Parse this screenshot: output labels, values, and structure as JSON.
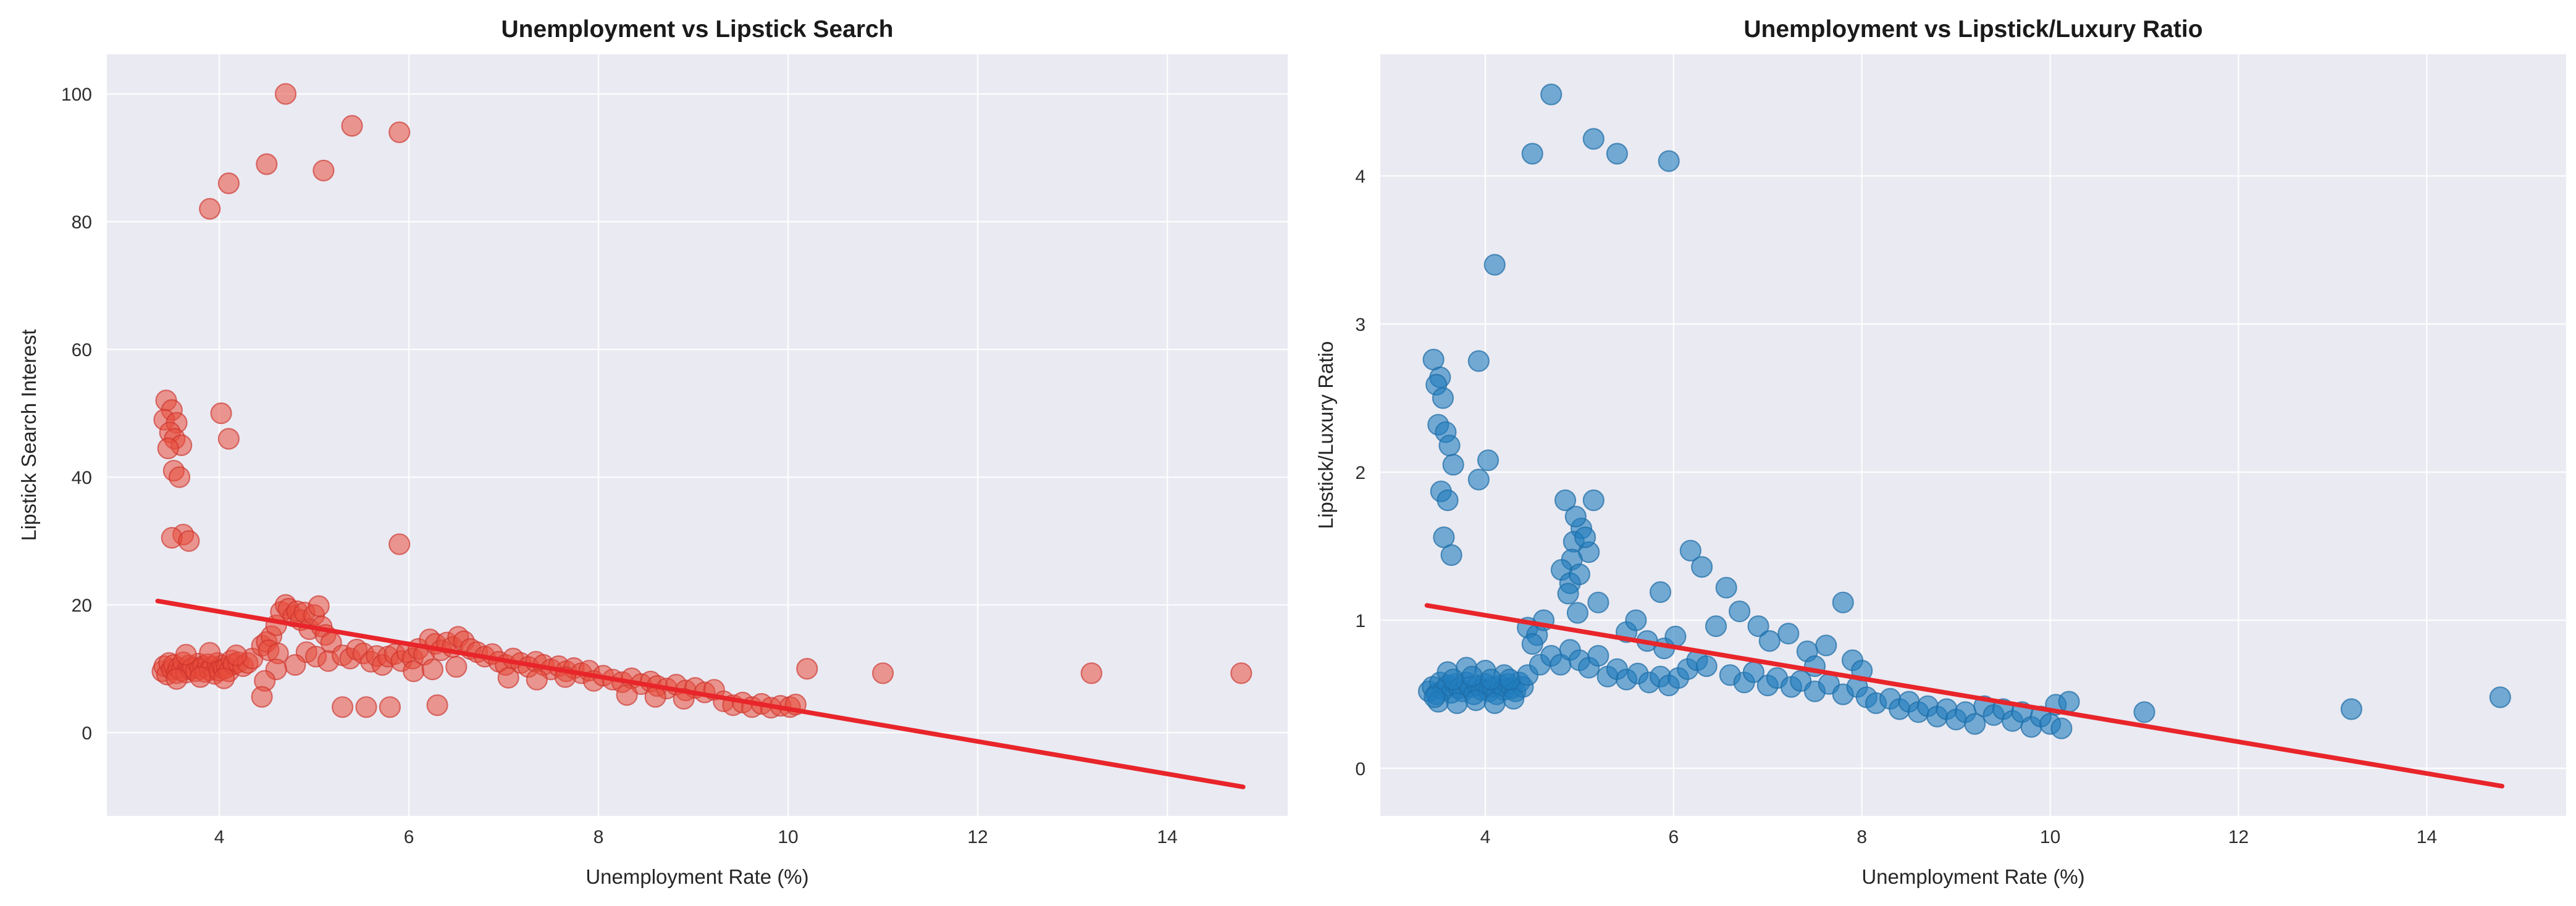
{
  "figure": {
    "background": "#ffffff",
    "panel_background": "#eaeaf2",
    "grid_color": "#ffffff"
  },
  "chart_data": [
    {
      "type": "scatter",
      "title": "Unemployment vs Lipstick Search",
      "xlabel": "Unemployment Rate (%)",
      "ylabel": "Lipstick Search Interest",
      "xlim": [
        2.814,
        15.27
      ],
      "ylim": [
        -13.04,
        106.2
      ],
      "xticks": [
        4,
        6,
        8,
        10,
        12,
        14
      ],
      "yticks": [
        0,
        20,
        40,
        60,
        80,
        100
      ],
      "legend": "none",
      "grid": true,
      "point_color": "rgba(231,76,60,0.55)",
      "point_edge": "rgba(205,50,45,0.65)",
      "trend_color": "#e8252a",
      "trend": {
        "x1": 3.35,
        "y1": 20.6,
        "x2": 14.8,
        "y2": -8.5
      },
      "points": [
        [
          3.4,
          9.6
        ],
        [
          3.42,
          10.4
        ],
        [
          3.45,
          9.1
        ],
        [
          3.47,
          10.9
        ],
        [
          3.5,
          9.9
        ],
        [
          3.52,
          10.6
        ],
        [
          3.55,
          9.3
        ],
        [
          3.57,
          10.1
        ],
        [
          3.6,
          9.7
        ],
        [
          3.62,
          11.0
        ],
        [
          3.65,
          9.4
        ],
        [
          3.68,
          10.5
        ],
        [
          3.7,
          9.9
        ],
        [
          3.72,
          10.2
        ],
        [
          3.75,
          9.6
        ],
        [
          3.78,
          10.8
        ],
        [
          3.8,
          10.0
        ],
        [
          3.83,
          10.4
        ],
        [
          3.85,
          9.5
        ],
        [
          3.88,
          10.7
        ],
        [
          3.9,
          9.8
        ],
        [
          3.93,
          10.3
        ],
        [
          3.95,
          9.2
        ],
        [
          3.98,
          10.9
        ],
        [
          4.0,
          9.7
        ],
        [
          4.03,
          10.5
        ],
        [
          4.05,
          10.0
        ],
        [
          4.08,
          10.2
        ],
        [
          4.1,
          9.6
        ],
        [
          4.13,
          11.3
        ],
        [
          4.15,
          10.7
        ],
        [
          4.2,
          11.0
        ],
        [
          4.25,
          10.4
        ],
        [
          4.3,
          10.9
        ],
        [
          4.35,
          11.6
        ],
        [
          3.55,
          8.4
        ],
        [
          3.8,
          8.7
        ],
        [
          4.05,
          8.5
        ],
        [
          3.65,
          12.2
        ],
        [
          3.9,
          12.5
        ],
        [
          4.18,
          12.1
        ],
        [
          3.44,
          52
        ],
        [
          3.5,
          50.5
        ],
        [
          3.42,
          49
        ],
        [
          3.55,
          48.5
        ],
        [
          3.48,
          47
        ],
        [
          3.53,
          46
        ],
        [
          3.6,
          45
        ],
        [
          3.46,
          44.5
        ],
        [
          3.52,
          41
        ],
        [
          3.58,
          40
        ],
        [
          3.62,
          31
        ],
        [
          3.5,
          30.5
        ],
        [
          3.68,
          30
        ],
        [
          4.02,
          50
        ],
        [
          4.1,
          46
        ],
        [
          3.9,
          82
        ],
        [
          4.1,
          86
        ],
        [
          4.5,
          89
        ],
        [
          4.7,
          100
        ],
        [
          5.1,
          88
        ],
        [
          5.4,
          95
        ],
        [
          5.9,
          94
        ],
        [
          5.9,
          29.5
        ],
        [
          4.45,
          13.6
        ],
        [
          4.5,
          14.2
        ],
        [
          4.55,
          15.1
        ],
        [
          4.6,
          16.8
        ],
        [
          4.65,
          18.9
        ],
        [
          4.7,
          20.0
        ],
        [
          4.73,
          19.4
        ],
        [
          4.78,
          18.2
        ],
        [
          4.82,
          19.0
        ],
        [
          4.86,
          17.6
        ],
        [
          4.9,
          18.8
        ],
        [
          4.95,
          16.2
        ],
        [
          5.0,
          18.4
        ],
        [
          5.05,
          19.8
        ],
        [
          5.08,
          16.6
        ],
        [
          5.12,
          15.3
        ],
        [
          5.18,
          14.1
        ],
        [
          4.52,
          12.9
        ],
        [
          4.62,
          12.4
        ],
        [
          4.92,
          12.6
        ],
        [
          5.02,
          11.9
        ],
        [
          5.15,
          11.2
        ],
        [
          4.8,
          10.6
        ],
        [
          4.6,
          9.9
        ],
        [
          4.48,
          8.1
        ],
        [
          4.45,
          5.6
        ],
        [
          5.3,
          4.0
        ],
        [
          5.55,
          4.0
        ],
        [
          5.8,
          4.0
        ],
        [
          6.3,
          4.3
        ],
        [
          5.3,
          12.1
        ],
        [
          5.38,
          11.6
        ],
        [
          5.45,
          13.0
        ],
        [
          5.52,
          12.4
        ],
        [
          5.6,
          11.1
        ],
        [
          5.66,
          12.0
        ],
        [
          5.72,
          10.6
        ],
        [
          5.78,
          11.9
        ],
        [
          5.85,
          12.3
        ],
        [
          5.92,
          11.2
        ],
        [
          5.98,
          12.6
        ],
        [
          6.04,
          11.6
        ],
        [
          6.1,
          13.1
        ],
        [
          6.16,
          12.2
        ],
        [
          6.22,
          14.6
        ],
        [
          6.28,
          13.9
        ],
        [
          6.34,
          12.9
        ],
        [
          6.4,
          14.1
        ],
        [
          6.46,
          13.4
        ],
        [
          6.52,
          15.0
        ],
        [
          6.58,
          14.3
        ],
        [
          6.05,
          9.6
        ],
        [
          6.25,
          9.9
        ],
        [
          6.5,
          10.3
        ],
        [
          6.65,
          13.1
        ],
        [
          6.72,
          12.6
        ],
        [
          6.8,
          11.9
        ],
        [
          6.88,
          12.3
        ],
        [
          6.95,
          11.1
        ],
        [
          7.02,
          10.6
        ],
        [
          7.1,
          11.6
        ],
        [
          7.18,
          10.9
        ],
        [
          7.26,
          10.3
        ],
        [
          7.34,
          11.1
        ],
        [
          7.42,
          10.6
        ],
        [
          7.5,
          9.9
        ],
        [
          7.58,
          10.4
        ],
        [
          7.66,
          9.6
        ],
        [
          7.74,
          10.1
        ],
        [
          7.82,
          9.3
        ],
        [
          7.9,
          9.7
        ],
        [
          7.05,
          8.6
        ],
        [
          7.35,
          8.3
        ],
        [
          7.65,
          8.7
        ],
        [
          7.95,
          8.1
        ],
        [
          8.05,
          8.9
        ],
        [
          8.15,
          8.3
        ],
        [
          8.25,
          7.9
        ],
        [
          8.35,
          8.5
        ],
        [
          8.45,
          7.6
        ],
        [
          8.55,
          8.0
        ],
        [
          8.62,
          7.3
        ],
        [
          8.72,
          6.9
        ],
        [
          8.82,
          7.5
        ],
        [
          8.92,
          6.6
        ],
        [
          9.02,
          7.0
        ],
        [
          9.12,
          6.3
        ],
        [
          9.22,
          6.7
        ],
        [
          8.3,
          5.9
        ],
        [
          8.6,
          5.6
        ],
        [
          8.9,
          5.3
        ],
        [
          9.32,
          4.9
        ],
        [
          9.42,
          4.3
        ],
        [
          9.52,
          4.7
        ],
        [
          9.62,
          4.0
        ],
        [
          9.72,
          4.5
        ],
        [
          9.82,
          3.9
        ],
        [
          9.92,
          4.2
        ],
        [
          10.02,
          4.0
        ],
        [
          10.08,
          4.4
        ],
        [
          10.2,
          10.0
        ],
        [
          11.0,
          9.3
        ],
        [
          13.2,
          9.3
        ],
        [
          14.78,
          9.3
        ]
      ]
    },
    {
      "type": "scatter",
      "title": "Unemployment vs Lipstick/Luxury Ratio",
      "xlabel": "Unemployment Rate (%)",
      "ylabel": "Lipstick/Luxury Ratio",
      "xlim": [
        2.885,
        15.48
      ],
      "ylim": [
        -0.321,
        4.821
      ],
      "xticks": [
        4,
        6,
        8,
        10,
        12,
        14
      ],
      "yticks": [
        0,
        1,
        2,
        3,
        4
      ],
      "legend": "none",
      "grid": true,
      "point_color": "rgba(33,125,190,0.6)",
      "point_edge": "rgba(28,108,165,0.7)",
      "trend_color": "#e8252a",
      "trend": {
        "x1": 3.38,
        "y1": 1.1,
        "x2": 14.8,
        "y2": -0.12
      },
      "points": [
        [
          4.7,
          4.55
        ],
        [
          5.15,
          4.25
        ],
        [
          4.5,
          4.15
        ],
        [
          5.4,
          4.15
        ],
        [
          5.95,
          4.1
        ],
        [
          4.1,
          3.4
        ],
        [
          3.45,
          2.76
        ],
        [
          3.93,
          2.75
        ],
        [
          3.52,
          2.64
        ],
        [
          3.48,
          2.59
        ],
        [
          3.55,
          2.5
        ],
        [
          3.5,
          2.32
        ],
        [
          3.58,
          2.27
        ],
        [
          3.62,
          2.18
        ],
        [
          3.66,
          2.05
        ],
        [
          4.03,
          2.08
        ],
        [
          3.93,
          1.95
        ],
        [
          3.53,
          1.87
        ],
        [
          3.6,
          1.81
        ],
        [
          3.56,
          1.56
        ],
        [
          3.64,
          1.44
        ],
        [
          4.85,
          1.81
        ],
        [
          5.15,
          1.81
        ],
        [
          5.02,
          1.62
        ],
        [
          4.94,
          1.53
        ],
        [
          4.92,
          1.41
        ],
        [
          4.81,
          1.34
        ],
        [
          4.9,
          1.25
        ],
        [
          5.0,
          1.31
        ],
        [
          5.1,
          1.46
        ],
        [
          4.96,
          1.7
        ],
        [
          5.06,
          1.56
        ],
        [
          4.88,
          1.18
        ],
        [
          5.2,
          1.12
        ],
        [
          4.98,
          1.05
        ],
        [
          5.86,
          1.19
        ],
        [
          6.18,
          1.47
        ],
        [
          6.56,
          1.22
        ],
        [
          6.3,
          1.36
        ],
        [
          5.5,
          0.92
        ],
        [
          5.6,
          1.0
        ],
        [
          5.72,
          0.86
        ],
        [
          5.9,
          0.81
        ],
        [
          6.02,
          0.89
        ],
        [
          6.45,
          0.96
        ],
        [
          6.7,
          1.06
        ],
        [
          6.9,
          0.96
        ],
        [
          7.8,
          1.12
        ],
        [
          7.02,
          0.86
        ],
        [
          7.22,
          0.91
        ],
        [
          7.42,
          0.79
        ],
        [
          7.62,
          0.83
        ],
        [
          7.5,
          0.69
        ],
        [
          7.9,
          0.73
        ],
        [
          8.0,
          0.66
        ],
        [
          3.4,
          0.52
        ],
        [
          3.44,
          0.55
        ],
        [
          3.48,
          0.5
        ],
        [
          3.52,
          0.58
        ],
        [
          3.56,
          0.53
        ],
        [
          3.6,
          0.56
        ],
        [
          3.64,
          0.51
        ],
        [
          3.68,
          0.57
        ],
        [
          3.72,
          0.54
        ],
        [
          3.76,
          0.52
        ],
        [
          3.8,
          0.58
        ],
        [
          3.84,
          0.55
        ],
        [
          3.88,
          0.5
        ],
        [
          3.92,
          0.56
        ],
        [
          3.96,
          0.53
        ],
        [
          4.0,
          0.57
        ],
        [
          4.04,
          0.52
        ],
        [
          4.08,
          0.55
        ],
        [
          4.12,
          0.5
        ],
        [
          4.16,
          0.56
        ],
        [
          4.2,
          0.53
        ],
        [
          4.24,
          0.57
        ],
        [
          4.28,
          0.54
        ],
        [
          4.32,
          0.52
        ],
        [
          4.36,
          0.58
        ],
        [
          4.4,
          0.55
        ],
        [
          3.5,
          0.45
        ],
        [
          3.7,
          0.44
        ],
        [
          3.9,
          0.46
        ],
        [
          4.1,
          0.44
        ],
        [
          4.3,
          0.47
        ],
        [
          3.6,
          0.65
        ],
        [
          3.8,
          0.68
        ],
        [
          4.0,
          0.66
        ],
        [
          4.2,
          0.63
        ],
        [
          3.46,
          0.48
        ],
        [
          3.66,
          0.6
        ],
        [
          3.86,
          0.62
        ],
        [
          4.06,
          0.6
        ],
        [
          4.26,
          0.6
        ],
        [
          4.45,
          0.95
        ],
        [
          4.55,
          0.9
        ],
        [
          4.62,
          1.0
        ],
        [
          4.5,
          0.84
        ],
        [
          4.45,
          0.63
        ],
        [
          4.58,
          0.7
        ],
        [
          4.7,
          0.76
        ],
        [
          4.8,
          0.7
        ],
        [
          4.9,
          0.8
        ],
        [
          5.0,
          0.73
        ],
        [
          5.1,
          0.68
        ],
        [
          5.2,
          0.76
        ],
        [
          5.3,
          0.62
        ],
        [
          5.4,
          0.67
        ],
        [
          5.5,
          0.6
        ],
        [
          5.62,
          0.64
        ],
        [
          5.74,
          0.58
        ],
        [
          5.86,
          0.62
        ],
        [
          5.95,
          0.56
        ],
        [
          6.05,
          0.61
        ],
        [
          6.15,
          0.67
        ],
        [
          6.25,
          0.73
        ],
        [
          6.35,
          0.69
        ],
        [
          6.6,
          0.63
        ],
        [
          6.75,
          0.58
        ],
        [
          6.85,
          0.65
        ],
        [
          7.0,
          0.56
        ],
        [
          7.1,
          0.61
        ],
        [
          7.25,
          0.55
        ],
        [
          7.35,
          0.59
        ],
        [
          7.5,
          0.52
        ],
        [
          7.65,
          0.57
        ],
        [
          7.8,
          0.5
        ],
        [
          7.95,
          0.55
        ],
        [
          8.05,
          0.48
        ],
        [
          8.15,
          0.44
        ],
        [
          8.3,
          0.47
        ],
        [
          8.4,
          0.4
        ],
        [
          8.5,
          0.45
        ],
        [
          8.6,
          0.38
        ],
        [
          8.7,
          0.42
        ],
        [
          8.8,
          0.35
        ],
        [
          8.9,
          0.4
        ],
        [
          9.0,
          0.33
        ],
        [
          9.1,
          0.38
        ],
        [
          9.2,
          0.3
        ],
        [
          9.3,
          0.42
        ],
        [
          9.4,
          0.36
        ],
        [
          9.5,
          0.4
        ],
        [
          9.6,
          0.32
        ],
        [
          9.7,
          0.38
        ],
        [
          9.8,
          0.28
        ],
        [
          9.9,
          0.35
        ],
        [
          10.0,
          0.3
        ],
        [
          10.06,
          0.43
        ],
        [
          10.12,
          0.27
        ],
        [
          10.2,
          0.45
        ],
        [
          11.0,
          0.38
        ],
        [
          13.2,
          0.4
        ],
        [
          14.78,
          0.48
        ]
      ]
    }
  ]
}
